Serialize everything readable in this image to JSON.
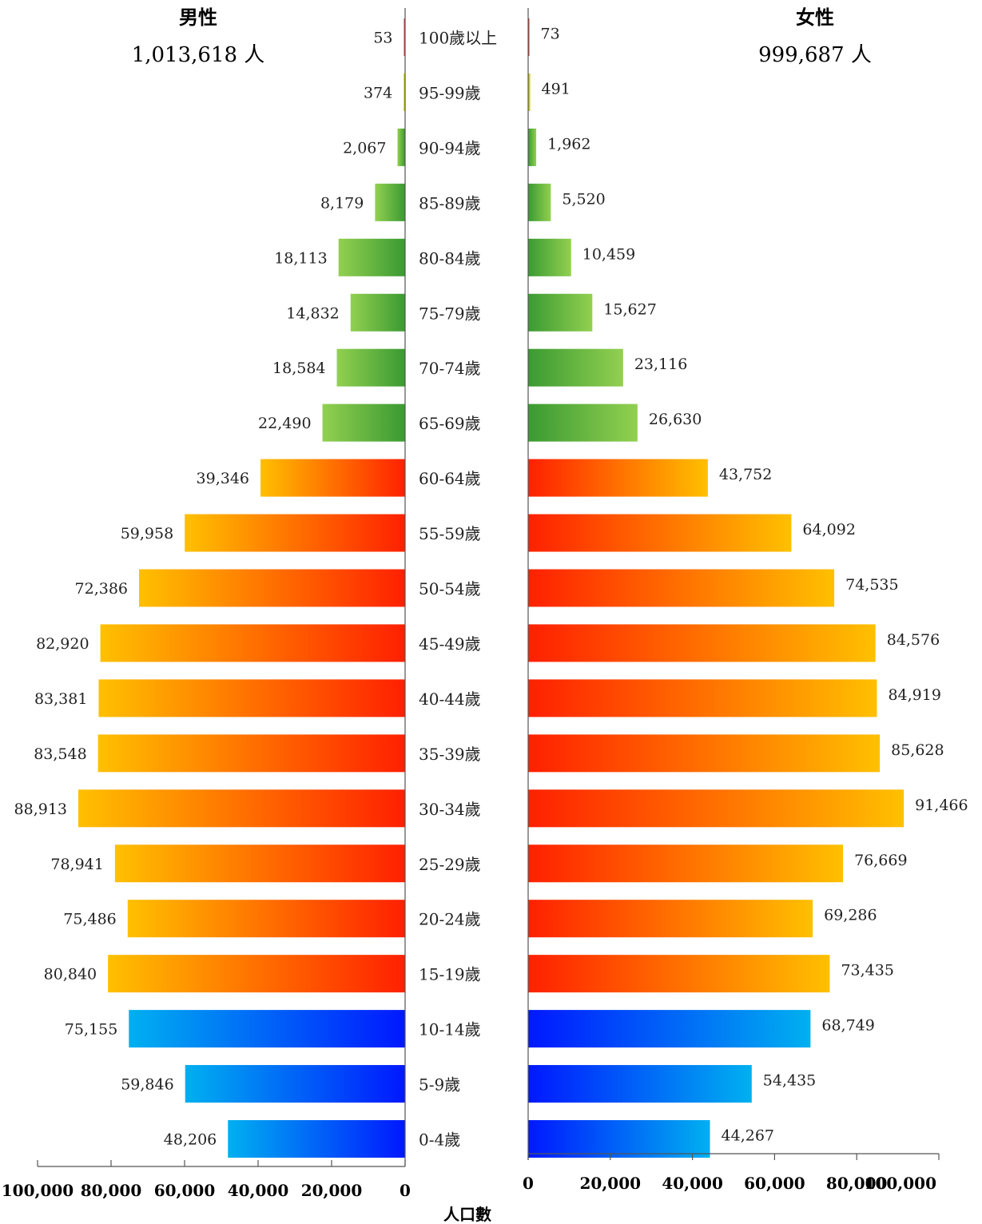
{
  "chart_data": {
    "type": "bar",
    "orientation": "horizontal-population-pyramid",
    "xlabel": "人口數",
    "xlim": [
      0,
      100000
    ],
    "ticks": [
      "0",
      "20,000",
      "40,000",
      "60,000",
      "80,000",
      "100,000"
    ],
    "tick_values": [
      0,
      20000,
      40000,
      60000,
      80000,
      100000
    ],
    "categories": [
      "100歲以上",
      "95-99歲",
      "90-94歲",
      "85-89歲",
      "80-84歲",
      "75-79歲",
      "70-74歲",
      "65-69歲",
      "60-64歲",
      "55-59歲",
      "50-54歲",
      "45-49歲",
      "40-44歲",
      "35-39歲",
      "30-34歲",
      "25-29歲",
      "20-24歲",
      "15-19歲",
      "10-14歲",
      "5-9歲",
      "0-4歲"
    ],
    "category_groups": [
      "elderly",
      "elderly",
      "elderly",
      "elderly",
      "elderly",
      "elderly",
      "elderly",
      "elderly",
      "working",
      "working",
      "working",
      "working",
      "working",
      "working",
      "working",
      "working",
      "working",
      "working",
      "youth",
      "youth",
      "youth"
    ],
    "series": [
      {
        "name": "男性",
        "total_label": "1,013,618 人",
        "values": [
          53,
          374,
          2067,
          8179,
          18113,
          14832,
          18584,
          22490,
          39346,
          59958,
          72386,
          82920,
          83381,
          83548,
          88913,
          78941,
          75486,
          80840,
          75155,
          59846,
          48206
        ],
        "labels": [
          "53",
          "374",
          "2,067",
          "8,179",
          "18,113",
          "14,832",
          "18,584",
          "22,490",
          "39,346",
          "59,958",
          "72,386",
          "82,920",
          "83,381",
          "83,548",
          "88,913",
          "78,941",
          "75,486",
          "80,840",
          "75,155",
          "59,846",
          "48,206"
        ]
      },
      {
        "name": "女性",
        "total_label": "999,687 人",
        "values": [
          73,
          491,
          1962,
          5520,
          10459,
          15627,
          23116,
          26630,
          43752,
          64092,
          74535,
          84576,
          84919,
          85628,
          91466,
          76669,
          69286,
          73435,
          68749,
          54435,
          44267
        ],
        "labels": [
          "73",
          "491",
          "1,962",
          "5,520",
          "10,459",
          "15,627",
          "23,116",
          "26,630",
          "43,752",
          "64,092",
          "74,535",
          "84,576",
          "84,919",
          "85,628",
          "91,466",
          "76,669",
          "69,286",
          "73,435",
          "68,749",
          "54,435",
          "44,267"
        ]
      }
    ],
    "colors": {
      "top_bar": "#d63030",
      "second_bar": "#c8d400",
      "elderly": [
        "#3a9a32",
        "#92d050"
      ],
      "working": [
        "#ff2000",
        "#ffc000"
      ],
      "youth": [
        "#0018ff",
        "#00b0f0"
      ],
      "axis": "#555555"
    }
  }
}
